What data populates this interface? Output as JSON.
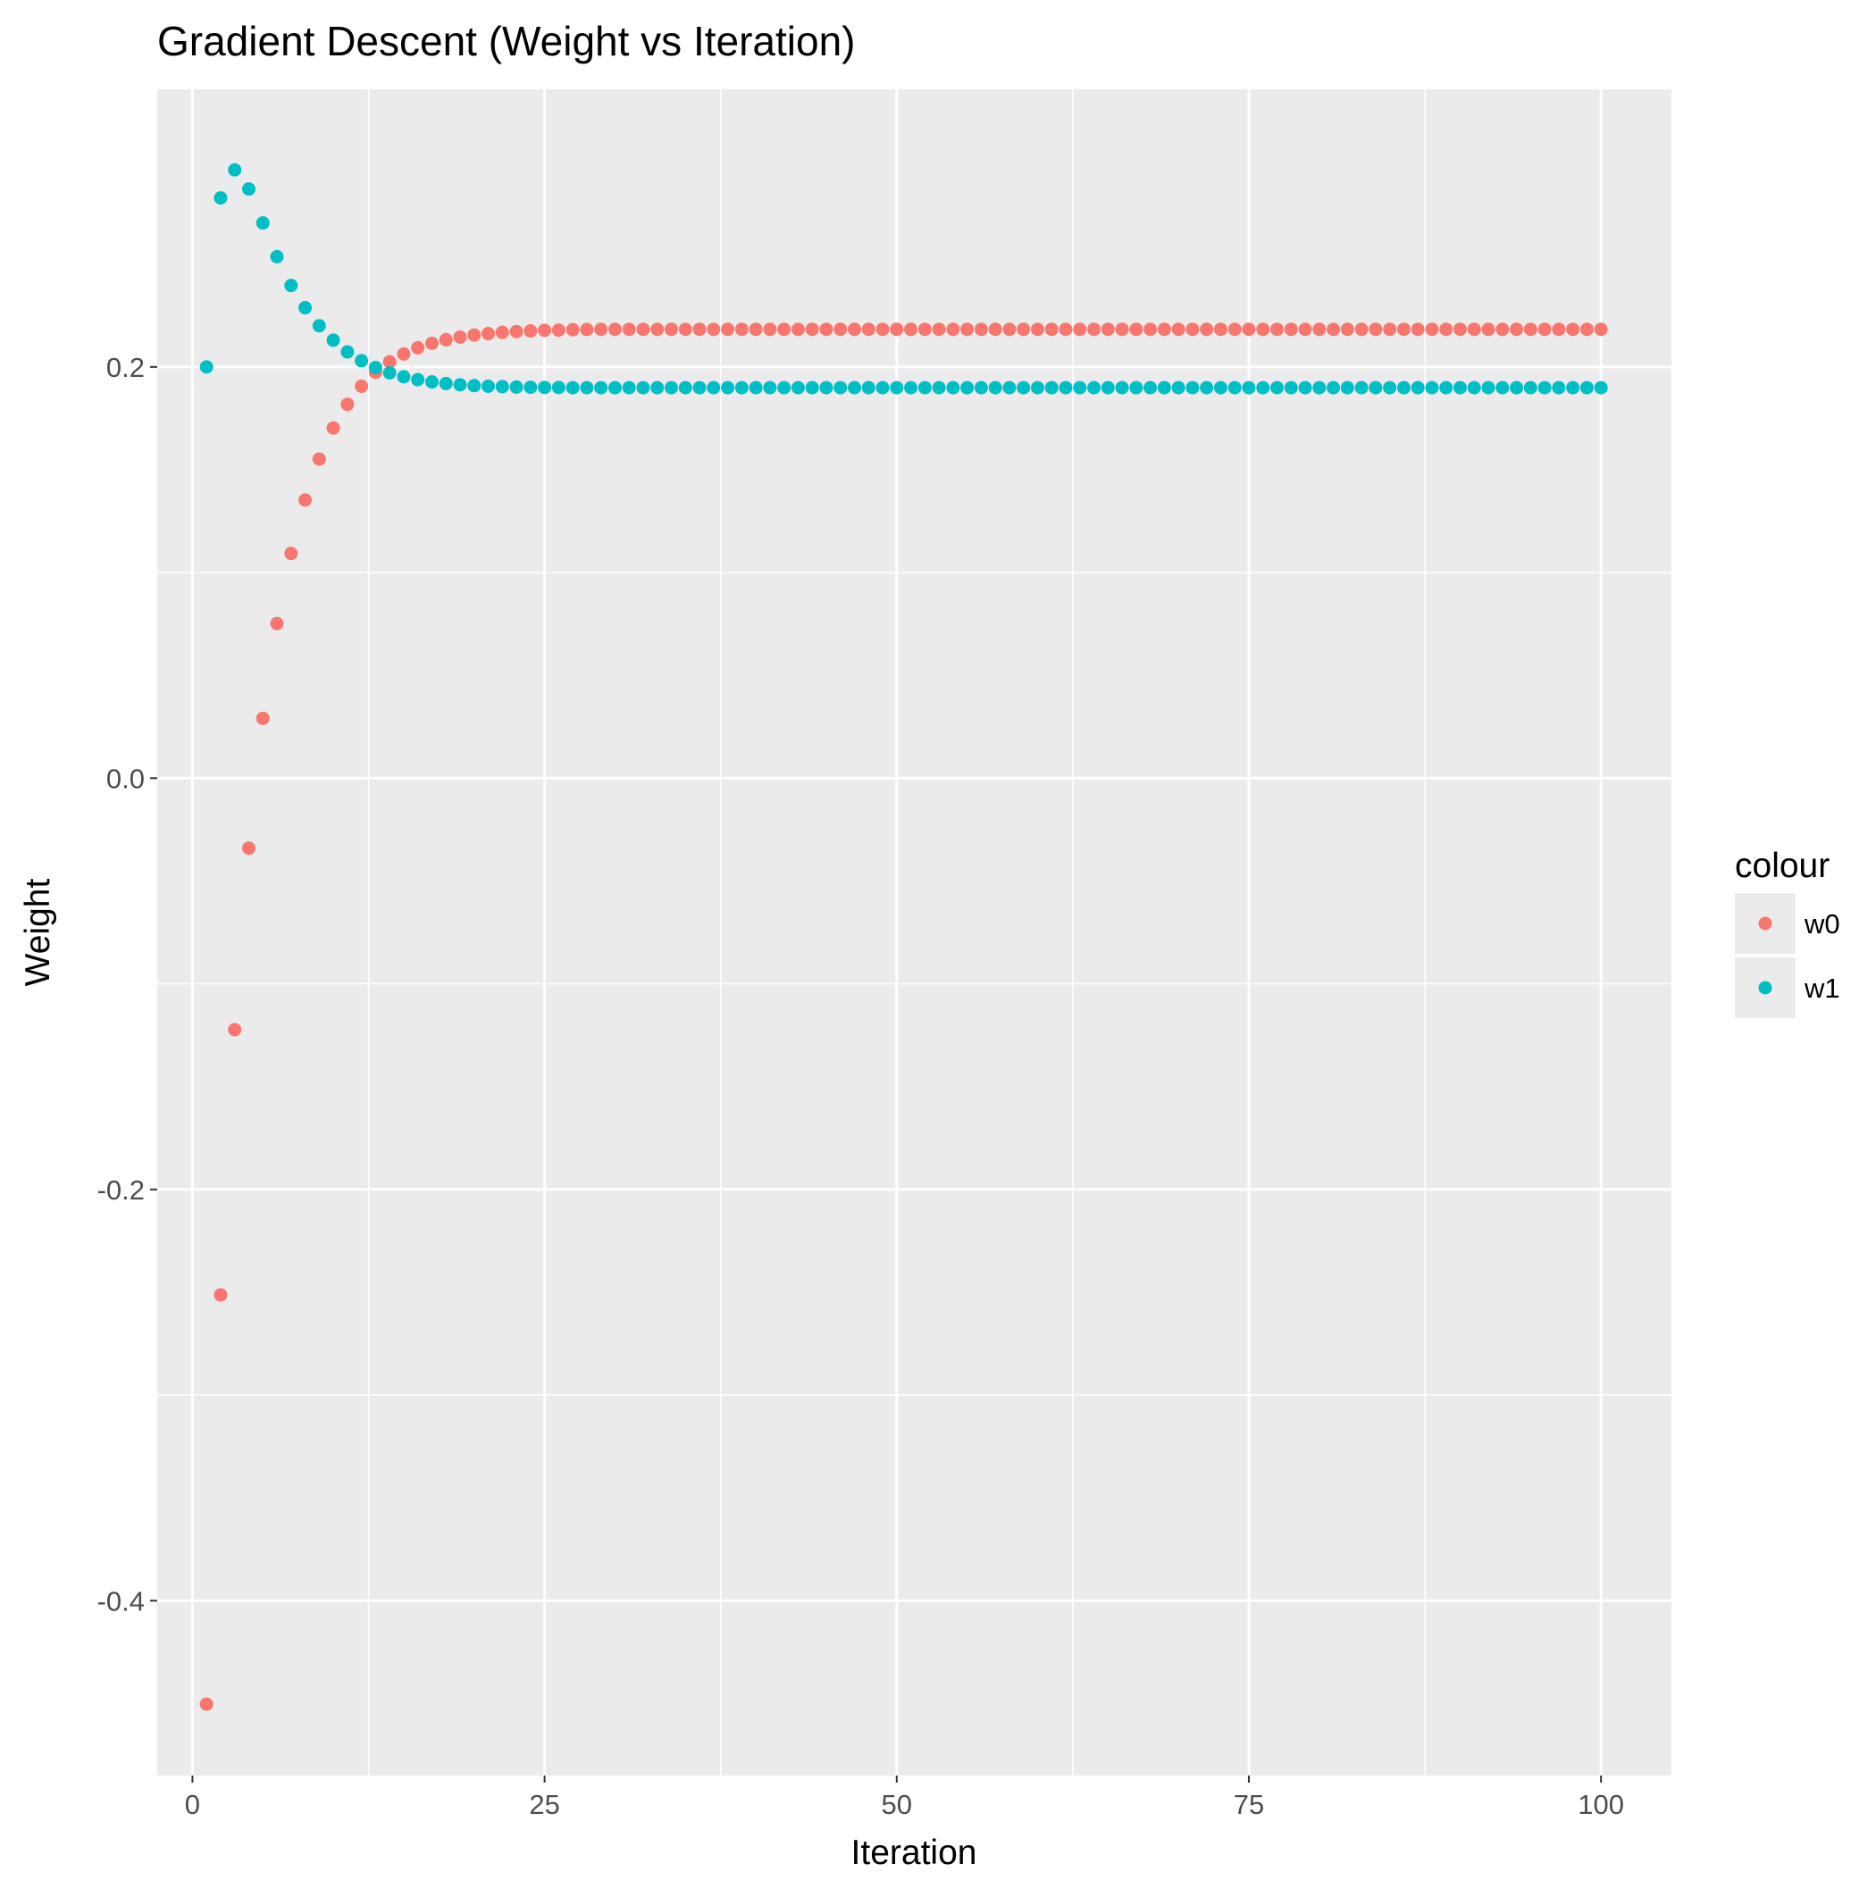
{
  "chart_data": {
    "type": "scatter",
    "title": "Gradient Descent (Weight vs Iteration)",
    "xlabel": "Iteration",
    "ylabel": "Weight",
    "xlim": [
      -2.5,
      105.0
    ],
    "ylim": [
      -0.485,
      0.335
    ],
    "x_ticks": [
      0,
      25,
      50,
      75,
      100
    ],
    "x_tick_labels": [
      "0",
      "25",
      "50",
      "75",
      "100"
    ],
    "y_ticks": [
      -0.4,
      -0.2,
      0.0,
      0.2
    ],
    "y_tick_labels": [
      "-0.4",
      "-0.2",
      "0.0",
      "0.2"
    ],
    "x_minor_ticks": [
      12.5,
      37.5,
      62.5,
      87.5
    ],
    "y_minor_ticks": [
      -0.3,
      -0.1,
      0.1
    ],
    "grid": true,
    "panel_background": "#ebebeb",
    "legend": {
      "title": "colour",
      "position": "right",
      "entries": [
        "w0",
        "w1"
      ]
    },
    "series": [
      {
        "name": "w0",
        "color": "#f8766d",
        "points_head": [
          [
            1,
            -0.4503
          ],
          [
            2,
            -0.2513
          ],
          [
            3,
            -0.1223
          ],
          [
            4,
            -0.034
          ],
          [
            5,
            0.0291
          ],
          [
            6,
            0.0752
          ],
          [
            7,
            0.1093
          ],
          [
            8,
            0.1353
          ],
          [
            9,
            0.1552
          ],
          [
            10,
            0.1703
          ],
          [
            11,
            0.1818
          ],
          [
            12,
            0.1906
          ],
          [
            13,
            0.1974
          ],
          [
            14,
            0.2025
          ],
          [
            15,
            0.2063
          ],
          [
            16,
            0.2093
          ],
          [
            17,
            0.2115
          ],
          [
            18,
            0.2132
          ],
          [
            19,
            0.2145
          ],
          [
            20,
            0.2155
          ],
          [
            21,
            0.2162
          ],
          [
            22,
            0.2168
          ],
          [
            23,
            0.2172
          ],
          [
            24,
            0.2175
          ],
          [
            25,
            0.2178
          ],
          [
            26,
            0.2179
          ],
          [
            27,
            0.2181
          ],
          [
            28,
            0.2182
          ],
          [
            29,
            0.2183
          ],
          [
            30,
            0.2183
          ]
        ],
        "plateau": {
          "from": 31,
          "to": 100,
          "value": 0.2183
        }
      },
      {
        "name": "w1",
        "color": "#00bfc4",
        "points_head": [
          [
            1,
            0.2
          ],
          [
            2,
            0.2822
          ],
          [
            3,
            0.2958
          ],
          [
            4,
            0.2865
          ],
          [
            5,
            0.27
          ],
          [
            6,
            0.2536
          ],
          [
            7,
            0.2396
          ],
          [
            8,
            0.2288
          ],
          [
            9,
            0.22
          ],
          [
            10,
            0.213
          ],
          [
            11,
            0.2073
          ],
          [
            12,
            0.203
          ],
          [
            13,
            0.1997
          ],
          [
            14,
            0.1971
          ],
          [
            15,
            0.1952
          ],
          [
            16,
            0.1938
          ],
          [
            17,
            0.1927
          ],
          [
            18,
            0.1919
          ],
          [
            19,
            0.1913
          ],
          [
            20,
            0.1909
          ],
          [
            21,
            0.1906
          ],
          [
            22,
            0.1904
          ],
          [
            23,
            0.1902
          ],
          [
            24,
            0.1901
          ],
          [
            25,
            0.19
          ],
          [
            26,
            0.19
          ],
          [
            27,
            0.1899
          ],
          [
            28,
            0.1899
          ],
          [
            29,
            0.1899
          ],
          [
            30,
            0.1899
          ]
        ],
        "plateau": {
          "from": 31,
          "to": 100,
          "value": 0.1899
        }
      }
    ]
  }
}
